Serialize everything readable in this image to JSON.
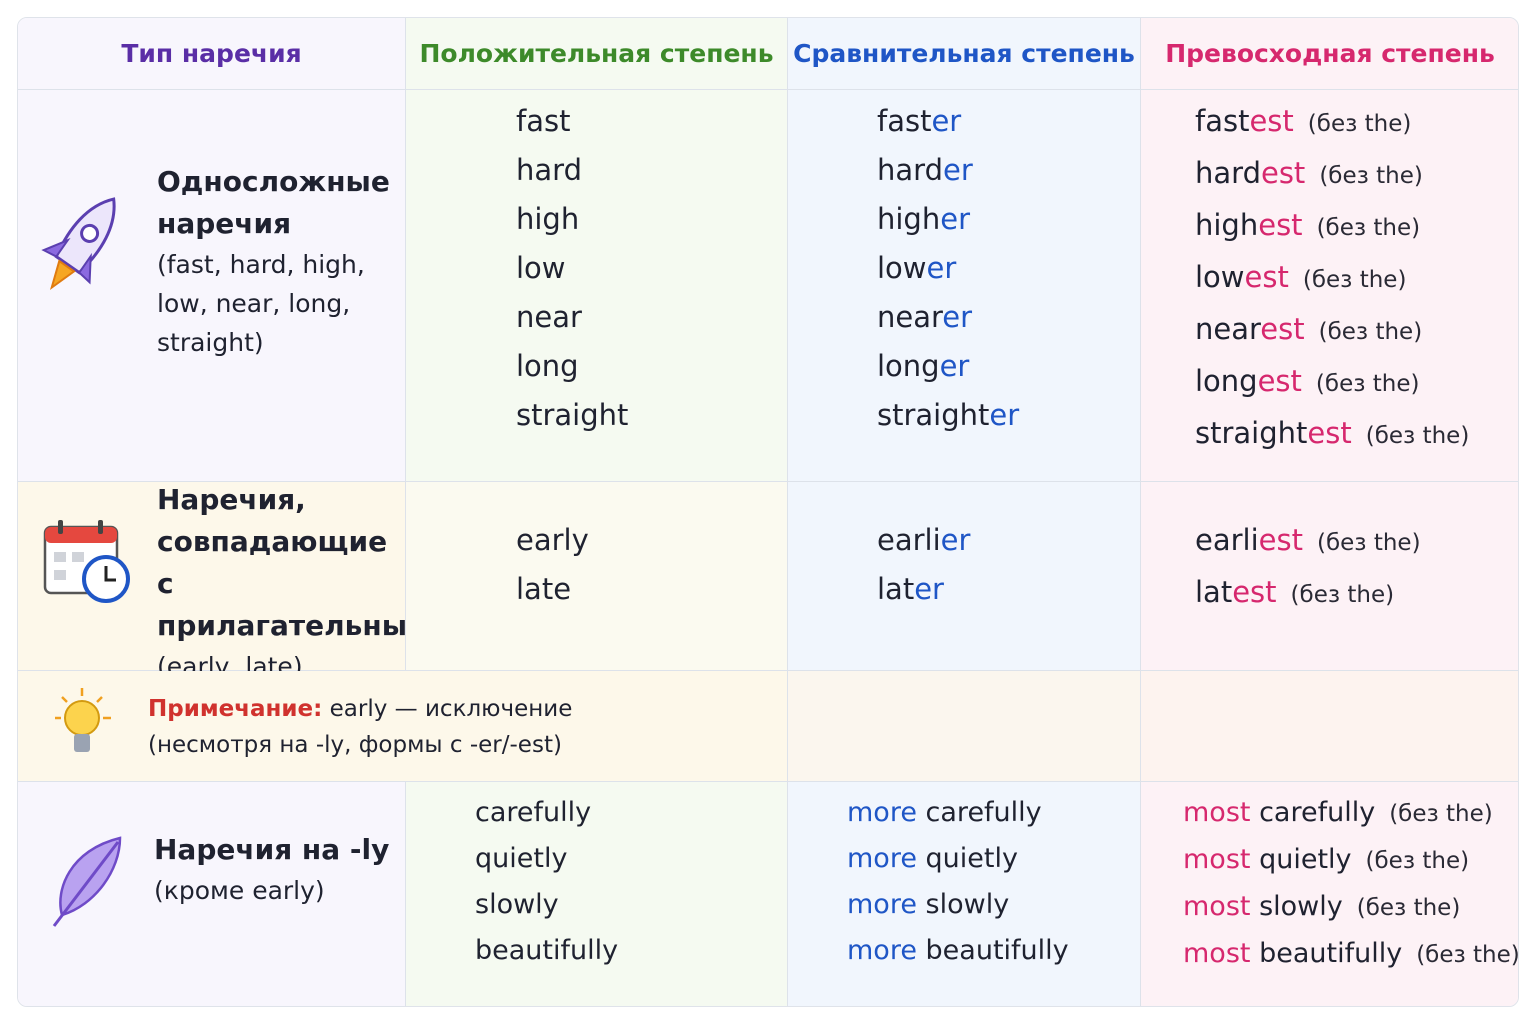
{
  "header": [
    "Тип наречия",
    "Положительная степень",
    "Сравнительная степень",
    "Превосходная степень"
  ],
  "rows": [
    {
      "title": "Односложные наречия",
      "examples": "(fast, hard, high, low, near, long, straight)",
      "positive": [
        "fast",
        "hard",
        "high",
        "low",
        "near",
        "long",
        "straight"
      ],
      "comparative": [
        {
          "base": "fast",
          "ending": "er"
        },
        {
          "base": "hard",
          "ending": "er"
        },
        {
          "base": "high",
          "ending": "er"
        },
        {
          "base": "low",
          "ending": "er"
        },
        {
          "base": "near",
          "ending": "er"
        },
        {
          "base": "long",
          "ending": "er"
        },
        {
          "base": "straight",
          "ending": "er"
        }
      ],
      "superlative": [
        {
          "base": "fast",
          "ending": "est",
          "note": "(без the)"
        },
        {
          "base": "hard",
          "ending": "est",
          "note": "(без the)"
        },
        {
          "base": "high",
          "ending": "est",
          "note": "(без the)"
        },
        {
          "base": "low",
          "ending": "est",
          "note": "(без the)"
        },
        {
          "base": "near",
          "ending": "est",
          "note": "(без the)"
        },
        {
          "base": "long",
          "ending": "est",
          "note": "(без the)"
        },
        {
          "base": "straight",
          "ending": "est",
          "note": "(без the)"
        }
      ]
    },
    {
      "title": "Наречия, совпадающие с прилагательными",
      "examples": "(early, late)",
      "positive": [
        "early",
        "late"
      ],
      "comparative": [
        {
          "base": "earli",
          "ending": "er"
        },
        {
          "base": "lat",
          "ending": "er"
        }
      ],
      "superlative": [
        {
          "base": "earli",
          "ending": "est",
          "note": "(без the)"
        },
        {
          "base": "lat",
          "ending": "est",
          "note": "(без the)"
        }
      ]
    },
    {
      "title": "Наречия на -ly",
      "examples": "(кроме early)",
      "positive": [
        "carefully",
        "quietly",
        "slowly",
        "beautifully"
      ],
      "comparative": [
        {
          "prefix": "more",
          "base": "carefully"
        },
        {
          "prefix": "more",
          "base": "quietly"
        },
        {
          "prefix": "more",
          "base": "slowly"
        },
        {
          "prefix": "more",
          "base": "beautifully"
        }
      ],
      "superlative": [
        {
          "prefix": "most",
          "base": "carefully",
          "note": "(без the)"
        },
        {
          "prefix": "most",
          "base": "quietly",
          "note": "(без the)"
        },
        {
          "prefix": "most",
          "base": "slowly",
          "note": "(без the)"
        },
        {
          "prefix": "most",
          "base": "beautifully",
          "note": "(без the)"
        }
      ]
    }
  ],
  "note": {
    "label": "Примечание:",
    "text": "early — исключение",
    "detail": "(несмотря на -ly, формы с -er/-est)"
  }
}
